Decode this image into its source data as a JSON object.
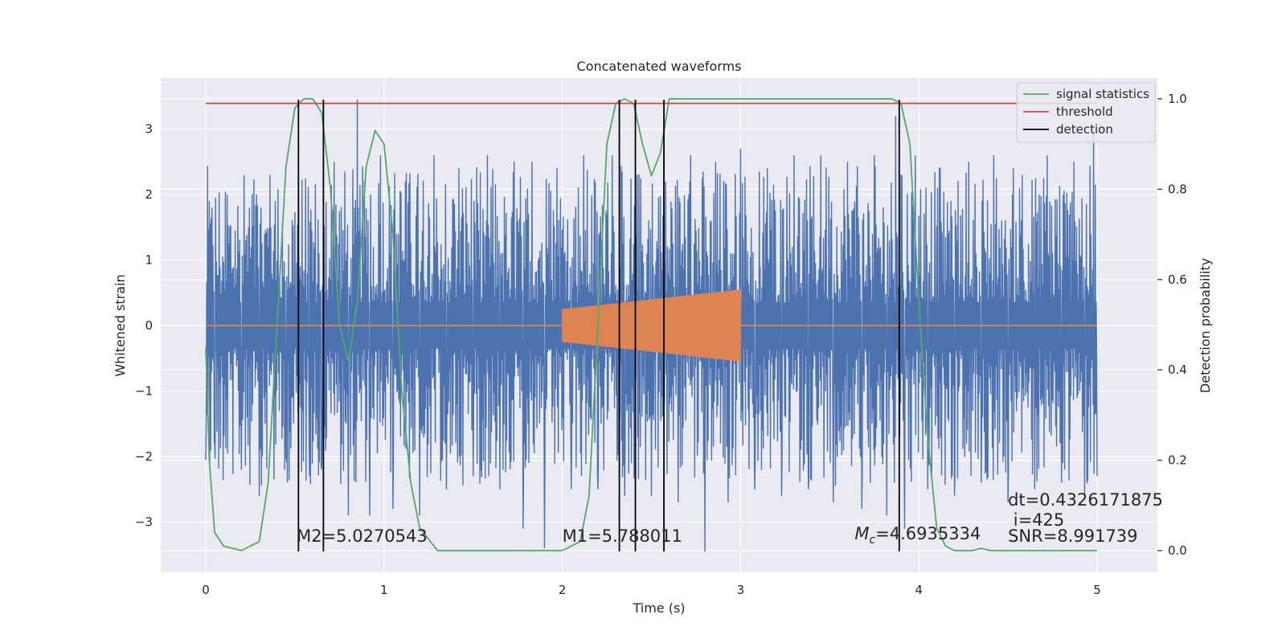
{
  "chart_data": {
    "type": "line",
    "title": "Concatenated waveforms",
    "xlabel": "Time (s)",
    "ylabel_left": "Whitened strain",
    "ylabel_right": "Detection probability",
    "xlim": [
      -0.25,
      5.35
    ],
    "ylim_left": [
      -3.8,
      3.8
    ],
    "ylim_right": [
      -0.05,
      1.03
    ],
    "grid": true,
    "legend_placement": "upper-right",
    "x_ticks": [
      0,
      1,
      2,
      3,
      4,
      5
    ],
    "x_tick_labels": [
      "0",
      "1",
      "2",
      "3",
      "4",
      "5"
    ],
    "y_left_ticks": [
      -3,
      -2,
      -1,
      0,
      1,
      2,
      3
    ],
    "y_left_tick_labels": [
      "−3",
      "−2",
      "−1",
      "0",
      "1",
      "2",
      "3"
    ],
    "y_right_ticks": [
      0.0,
      0.2,
      0.4,
      0.6,
      0.8,
      1.0
    ],
    "y_right_tick_labels": [
      "0.0",
      "0.2",
      "0.4",
      "0.6",
      "0.8",
      "1.0"
    ],
    "noise": {
      "color": "#4c72b0",
      "x_start": 0,
      "x_end": 5,
      "peaks": [
        [
          0.0,
          -2.05
        ],
        [
          0.02,
          1.9
        ],
        [
          0.05,
          -1.8
        ],
        [
          0.12,
          2.0
        ],
        [
          0.2,
          -2.2
        ],
        [
          0.3,
          -2.6
        ],
        [
          0.36,
          2.3
        ],
        [
          0.45,
          -2.0
        ],
        [
          0.52,
          2.1
        ],
        [
          0.58,
          -1.8
        ],
        [
          0.65,
          -2.2
        ],
        [
          0.72,
          2.5
        ],
        [
          0.8,
          -2.9
        ],
        [
          0.85,
          3.45
        ],
        [
          0.92,
          -2.9
        ],
        [
          0.98,
          2.6
        ],
        [
          1.05,
          -2.8
        ],
        [
          1.12,
          2.2
        ],
        [
          1.2,
          -2.9
        ],
        [
          1.28,
          2.6
        ],
        [
          1.35,
          -2.5
        ],
        [
          1.42,
          2.4
        ],
        [
          1.5,
          -2.3
        ],
        [
          1.58,
          2.6
        ],
        [
          1.65,
          -2.5
        ],
        [
          1.73,
          2.5
        ],
        [
          1.78,
          -3.1
        ],
        [
          1.83,
          2.5
        ],
        [
          1.9,
          -3.4
        ],
        [
          1.97,
          2.4
        ],
        [
          2.05,
          -2.5
        ],
        [
          2.12,
          2.6
        ],
        [
          2.2,
          -2.5
        ],
        [
          2.28,
          2.6
        ],
        [
          2.35,
          -2.6
        ],
        [
          2.42,
          2.3
        ],
        [
          2.5,
          -2.6
        ],
        [
          2.57,
          2.8
        ],
        [
          2.65,
          -2.7
        ],
        [
          2.72,
          2.6
        ],
        [
          2.8,
          -3.45
        ],
        [
          2.86,
          2.5
        ],
        [
          2.93,
          -2.7
        ],
        [
          3.0,
          2.7
        ],
        [
          3.08,
          -2.5
        ],
        [
          3.15,
          2.4
        ],
        [
          3.23,
          -2.6
        ],
        [
          3.3,
          2.6
        ],
        [
          3.38,
          -2.5
        ],
        [
          3.45,
          2.6
        ],
        [
          3.52,
          -2.7
        ],
        [
          3.6,
          2.5
        ],
        [
          3.68,
          -2.8
        ],
        [
          3.75,
          2.6
        ],
        [
          3.82,
          -2.9
        ],
        [
          3.87,
          3.2
        ],
        [
          3.92,
          -3.1
        ],
        [
          3.98,
          2.6
        ],
        [
          4.05,
          -2.5
        ],
        [
          4.12,
          2.4
        ],
        [
          4.2,
          -2.6
        ],
        [
          4.28,
          2.5
        ],
        [
          4.35,
          -2.4
        ],
        [
          4.42,
          2.6
        ],
        [
          4.5,
          -2.7
        ],
        [
          4.58,
          2.3
        ],
        [
          4.65,
          -2.5
        ],
        [
          4.72,
          2.6
        ],
        [
          4.8,
          -2.4
        ],
        [
          4.87,
          2.5
        ],
        [
          4.93,
          -2.6
        ],
        [
          4.98,
          3.0
        ],
        [
          5.0,
          -2.3
        ]
      ]
    },
    "injected_signal": {
      "color": "#dd8452",
      "x_start": 2.0,
      "x_end": 3.0,
      "amplitude_start": 0.25,
      "amplitude_end": 0.55,
      "baseline": 0
    },
    "series": [
      {
        "name": "signal statistics",
        "color": "#55a868",
        "axis": "right",
        "x": [
          0.0,
          0.02,
          0.05,
          0.1,
          0.2,
          0.3,
          0.35,
          0.4,
          0.45,
          0.5,
          0.55,
          0.6,
          0.65,
          0.7,
          0.75,
          0.8,
          0.85,
          0.9,
          0.95,
          1.0,
          1.05,
          1.1,
          1.15,
          1.2,
          1.3,
          1.6,
          2.0,
          2.1,
          2.15,
          2.2,
          2.25,
          2.3,
          2.35,
          2.4,
          2.45,
          2.5,
          2.55,
          2.6,
          2.7,
          3.0,
          3.5,
          3.85,
          3.9,
          3.95,
          4.0,
          4.05,
          4.1,
          4.15,
          4.2,
          4.3,
          4.35,
          4.4,
          5.0
        ],
        "values": [
          0.45,
          0.2,
          0.04,
          0.01,
          0.0,
          0.02,
          0.15,
          0.5,
          0.85,
          0.98,
          1.0,
          1.0,
          0.97,
          0.8,
          0.5,
          0.42,
          0.55,
          0.85,
          0.93,
          0.9,
          0.7,
          0.35,
          0.15,
          0.05,
          0.0,
          0.0,
          0.0,
          0.02,
          0.12,
          0.5,
          0.9,
          0.99,
          1.0,
          0.99,
          0.9,
          0.83,
          0.88,
          1.0,
          1.0,
          1.0,
          1.0,
          1.0,
          0.99,
          0.9,
          0.55,
          0.25,
          0.05,
          0.01,
          0.0,
          0.0,
          0.005,
          0.0,
          0.0
        ]
      },
      {
        "name": "threshold",
        "color": "#c44e52",
        "axis": "right",
        "x": [
          0,
          5
        ],
        "values": [
          0.99,
          0.99
        ]
      }
    ],
    "detections": {
      "name": "detection",
      "color": "#000000",
      "x": [
        0.52,
        0.66,
        2.32,
        2.41,
        2.57,
        3.89
      ]
    },
    "annotations": [
      {
        "text": "M2=5.0270543",
        "x": 0.51,
        "y_right": 0.02
      },
      {
        "text": "M1=5.788011",
        "x": 2.0,
        "y_right": 0.02
      },
      {
        "text": "=4.6935334",
        "x": 3.64,
        "y_right": 0.025,
        "prefix": "M",
        "prefix_sub": "c"
      },
      {
        "text": "dt=0.4326171875",
        "x": 4.5,
        "y_right": 0.1
      },
      {
        "text": "i=425",
        "x": 4.53,
        "y_right": 0.055
      },
      {
        "text": "SNR=8.991739",
        "x": 4.5,
        "y_right": 0.02
      }
    ],
    "legend": [
      "signal statistics",
      "threshold",
      "detection"
    ]
  }
}
